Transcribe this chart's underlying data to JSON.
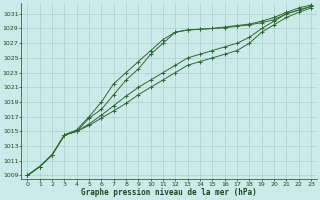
{
  "xlabel": "Graphe pression niveau de la mer (hPa)",
  "bg_color": "#cdeaea",
  "grid_color": "#aed0d0",
  "line_color": "#2d6a2d",
  "marker_color": "#2d6a2d",
  "text_color": "#1a4a1a",
  "ylim": [
    1008.5,
    1032.5
  ],
  "xlim": [
    -0.5,
    23.5
  ],
  "yticks": [
    1009,
    1011,
    1013,
    1015,
    1017,
    1019,
    1021,
    1023,
    1025,
    1027,
    1029,
    1031
  ],
  "xticks": [
    0,
    1,
    2,
    3,
    4,
    5,
    6,
    7,
    8,
    9,
    10,
    11,
    12,
    13,
    14,
    15,
    16,
    17,
    18,
    19,
    20,
    21,
    22,
    23
  ],
  "series": [
    [
      1009.0,
      1010.2,
      1011.8,
      1014.5,
      1015.0,
      1016.8,
      1018.0,
      1020.0,
      1022.0,
      1023.5,
      1025.5,
      1027.0,
      1028.5,
      1028.8,
      1028.9,
      1029.0,
      1029.1,
      1029.3,
      1029.5,
      1029.8,
      1030.2,
      1031.0,
      1031.5,
      1032.0
    ],
    [
      1009.0,
      1010.2,
      1011.8,
      1014.5,
      1015.0,
      1016.0,
      1017.2,
      1018.5,
      1019.8,
      1021.0,
      1022.0,
      1023.0,
      1024.0,
      1025.0,
      1025.5,
      1026.0,
      1026.5,
      1027.0,
      1027.8,
      1029.0,
      1030.0,
      1031.0,
      1031.5,
      1032.0
    ],
    [
      1009.0,
      1010.2,
      1011.8,
      1014.5,
      1015.0,
      1015.8,
      1016.8,
      1017.8,
      1018.8,
      1020.0,
      1021.0,
      1022.0,
      1023.0,
      1024.0,
      1024.5,
      1025.0,
      1025.5,
      1026.0,
      1027.0,
      1028.5,
      1029.5,
      1030.5,
      1031.2,
      1031.8
    ],
    [
      1009.0,
      1010.2,
      1011.8,
      1014.5,
      1015.2,
      1017.0,
      1019.0,
      1021.5,
      1023.0,
      1024.5,
      1026.0,
      1027.5,
      1028.5,
      1028.8,
      1028.9,
      1029.0,
      1029.2,
      1029.4,
      1029.6,
      1030.0,
      1030.5,
      1031.2,
      1031.8,
      1032.2
    ]
  ]
}
